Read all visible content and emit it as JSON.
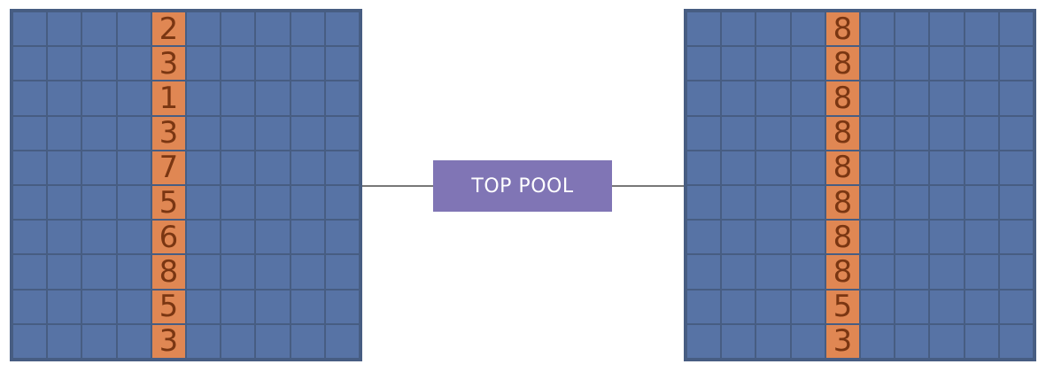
{
  "operation": {
    "label": "TOP POOL"
  },
  "grid": {
    "rows": 10,
    "cols": 10,
    "highlight_col": 4
  },
  "input_column": [
    "2",
    "3",
    "1",
    "3",
    "7",
    "5",
    "6",
    "8",
    "5",
    "3"
  ],
  "output_column": [
    "8",
    "8",
    "8",
    "8",
    "8",
    "8",
    "8",
    "8",
    "5",
    "3"
  ],
  "colors": {
    "grid_cell": "#5773a5",
    "grid_border": "#475d82",
    "highlight_cell": "#e08753",
    "digit_text": "#7a3612",
    "op_box": "#8075b5",
    "connector": "#777777"
  }
}
